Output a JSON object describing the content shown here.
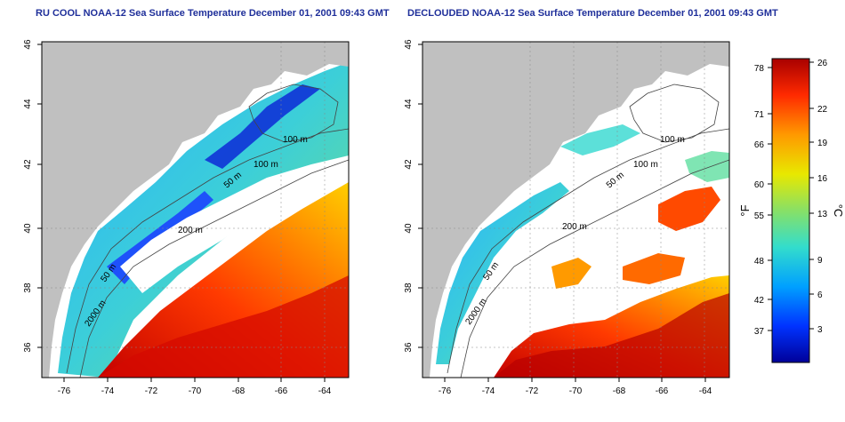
{
  "panels": [
    {
      "title": "RU COOL NOAA-12 Sea Surface Temperature December 01, 2001 09:43 GMT",
      "x_ticks": [
        "-76",
        "-74",
        "-72",
        "-70",
        "-68",
        "-66",
        "-64"
      ],
      "y_ticks": [
        "46",
        "44",
        "42",
        "40",
        "38",
        "36"
      ],
      "contour_labels": [
        "100 m",
        "100 m",
        "50 m",
        "200 m",
        "50 m",
        "2000 m"
      ]
    },
    {
      "title": "DECLOUDED NOAA-12 Sea Surface Temperature December 01, 2001 09:43 GMT",
      "x_ticks": [
        "-76",
        "-74",
        "-72",
        "-70",
        "-68",
        "-66",
        "-64"
      ],
      "y_ticks": [
        "46",
        "44",
        "42",
        "40",
        "38",
        "36"
      ],
      "contour_labels": [
        "100 m",
        "100 m",
        "50 m",
        "200 m",
        "50 m",
        "2000 m"
      ]
    }
  ],
  "colorbar": {
    "fahrenheit_unit": "°F",
    "celsius_unit": "°C",
    "fahrenheit_ticks": [
      "78",
      "71",
      "66",
      "60",
      "55",
      "48",
      "42",
      "37"
    ],
    "celsius_ticks": [
      "26",
      "22",
      "19",
      "16",
      "13",
      "9",
      "6",
      "3"
    ],
    "colors": [
      "#000099",
      "#0033ff",
      "#00a0ff",
      "#33ddcc",
      "#88e066",
      "#e8e800",
      "#ff9900",
      "#ff2a00",
      "#a80000"
    ]
  },
  "colors": {
    "land": "#c0c0c0",
    "title": "#1f2f9a",
    "axis": "#000000"
  }
}
